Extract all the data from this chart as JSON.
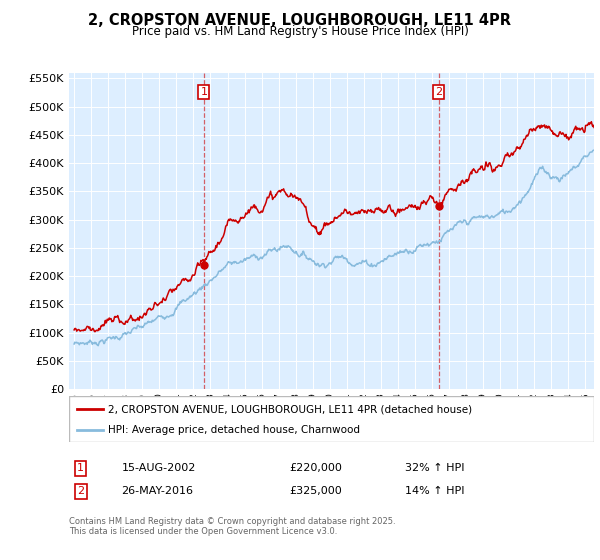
{
  "title": "2, CROPSTON AVENUE, LOUGHBOROUGH, LE11 4PR",
  "subtitle": "Price paid vs. HM Land Registry's House Price Index (HPI)",
  "legend_label_red": "2, CROPSTON AVENUE, LOUGHBOROUGH, LE11 4PR (detached house)",
  "legend_label_blue": "HPI: Average price, detached house, Charnwood",
  "transaction1_date": "15-AUG-2002",
  "transaction1_price": "£220,000",
  "transaction1_hpi": "32% ↑ HPI",
  "transaction2_date": "26-MAY-2016",
  "transaction2_price": "£325,000",
  "transaction2_hpi": "14% ↑ HPI",
  "footer": "Contains HM Land Registry data © Crown copyright and database right 2025.\nThis data is licensed under the Open Government Licence v3.0.",
  "red_color": "#cc0000",
  "blue_color": "#88bbdd",
  "marker1_x": 2002.62,
  "marker1_y": 220000,
  "marker2_x": 2016.4,
  "marker2_y": 325000,
  "vline1_x": 2002.62,
  "vline2_x": 2016.4,
  "ylim": [
    0,
    560000
  ],
  "xlim": [
    1994.7,
    2025.5
  ],
  "background_color": "#ddeeff",
  "hpi_keypoints": [
    [
      1995.0,
      80000
    ],
    [
      1996.0,
      84000
    ],
    [
      1997.0,
      89000
    ],
    [
      1998.0,
      97000
    ],
    [
      1999.0,
      108000
    ],
    [
      2000.0,
      125000
    ],
    [
      2001.0,
      148000
    ],
    [
      2002.0,
      168000
    ],
    [
      2003.0,
      195000
    ],
    [
      2004.0,
      220000
    ],
    [
      2005.0,
      228000
    ],
    [
      2006.0,
      238000
    ],
    [
      2007.5,
      255000
    ],
    [
      2008.5,
      238000
    ],
    [
      2009.5,
      222000
    ],
    [
      2010.5,
      235000
    ],
    [
      2011.5,
      228000
    ],
    [
      2012.5,
      222000
    ],
    [
      2013.5,
      235000
    ],
    [
      2014.5,
      248000
    ],
    [
      2015.5,
      258000
    ],
    [
      2016.5,
      268000
    ],
    [
      2017.5,
      285000
    ],
    [
      2018.5,
      300000
    ],
    [
      2019.5,
      305000
    ],
    [
      2020.5,
      315000
    ],
    [
      2021.5,
      350000
    ],
    [
      2022.0,
      375000
    ],
    [
      2022.5,
      390000
    ],
    [
      2023.0,
      380000
    ],
    [
      2023.5,
      375000
    ],
    [
      2024.0,
      385000
    ],
    [
      2024.5,
      395000
    ],
    [
      2025.0,
      415000
    ],
    [
      2025.5,
      425000
    ]
  ],
  "red_keypoints": [
    [
      1995.0,
      105000
    ],
    [
      1996.0,
      110000
    ],
    [
      1997.0,
      116000
    ],
    [
      1998.0,
      123000
    ],
    [
      1999.0,
      130000
    ],
    [
      2000.0,
      150000
    ],
    [
      2001.0,
      172000
    ],
    [
      2002.0,
      195000
    ],
    [
      2002.62,
      220000
    ],
    [
      2003.5,
      260000
    ],
    [
      2004.5,
      305000
    ],
    [
      2005.5,
      325000
    ],
    [
      2006.5,
      338000
    ],
    [
      2007.2,
      348000
    ],
    [
      2007.8,
      340000
    ],
    [
      2008.5,
      320000
    ],
    [
      2009.0,
      295000
    ],
    [
      2009.5,
      285000
    ],
    [
      2010.0,
      295000
    ],
    [
      2010.5,
      308000
    ],
    [
      2011.0,
      315000
    ],
    [
      2011.5,
      308000
    ],
    [
      2012.0,
      305000
    ],
    [
      2012.5,
      308000
    ],
    [
      2013.0,
      315000
    ],
    [
      2013.5,
      320000
    ],
    [
      2014.0,
      318000
    ],
    [
      2014.5,
      322000
    ],
    [
      2015.0,
      325000
    ],
    [
      2015.5,
      330000
    ],
    [
      2016.0,
      335000
    ],
    [
      2016.4,
      325000
    ],
    [
      2017.0,
      360000
    ],
    [
      2017.5,
      370000
    ],
    [
      2018.0,
      375000
    ],
    [
      2018.5,
      380000
    ],
    [
      2019.0,
      385000
    ],
    [
      2019.5,
      390000
    ],
    [
      2020.0,
      395000
    ],
    [
      2020.5,
      400000
    ],
    [
      2021.0,
      420000
    ],
    [
      2021.5,
      445000
    ],
    [
      2022.0,
      460000
    ],
    [
      2022.3,
      470000
    ],
    [
      2022.6,
      480000
    ],
    [
      2022.9,
      470000
    ],
    [
      2023.2,
      455000
    ],
    [
      2023.5,
      460000
    ],
    [
      2023.8,
      450000
    ],
    [
      2024.1,
      455000
    ],
    [
      2024.4,
      460000
    ],
    [
      2024.7,
      455000
    ],
    [
      2025.0,
      460000
    ],
    [
      2025.5,
      468000
    ]
  ]
}
